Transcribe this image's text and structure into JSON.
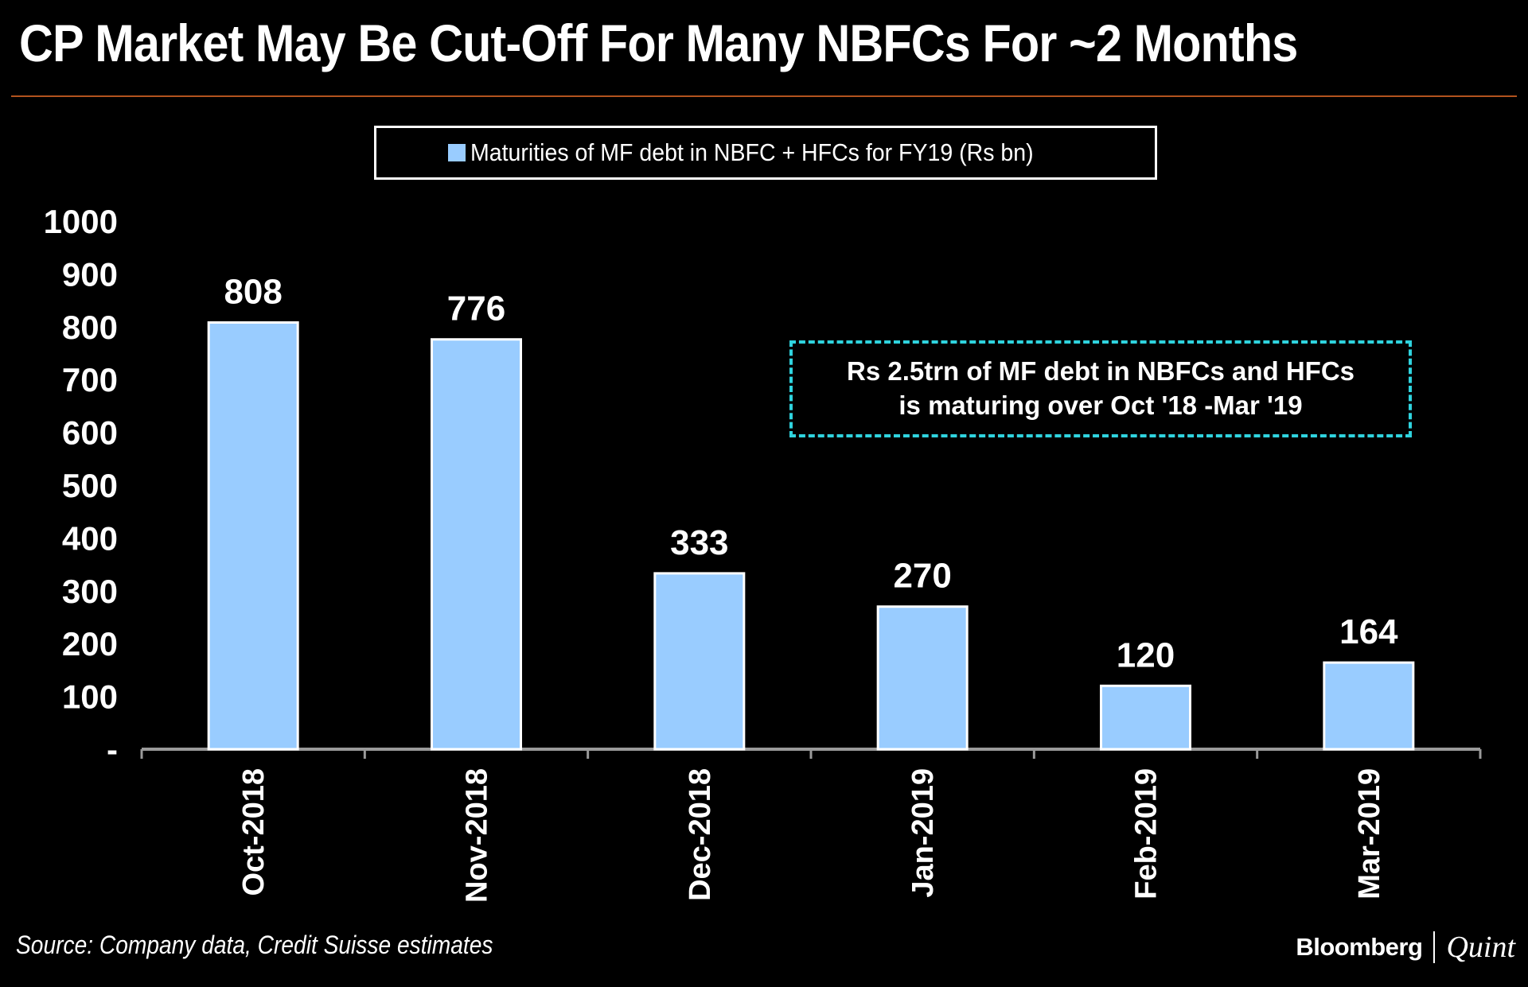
{
  "header": {
    "title": "CP Market May Be Cut-Off For Many NBFCs For ~2 Months"
  },
  "annotation": {
    "line1": "Rs 2.5trn of MF debt in NBFCs and HFCs",
    "line2": "is maturing over Oct '18 -Mar '19"
  },
  "footer": {
    "source": "Source: Company data, Credit Suisse estimates",
    "brand_left": "Bloomberg",
    "brand_right": "Quint"
  },
  "colors": {
    "bar": "#99ccff",
    "annotation_border": "#2fd3de",
    "rule": "#b2531e"
  },
  "chart_data": {
    "type": "bar",
    "title": "CP Market May Be Cut-Off For Many NBFCs For ~2 Months",
    "categories": [
      "Oct-2018",
      "Nov-2018",
      "Dec-2018",
      "Jan-2019",
      "Feb-2019",
      "Mar-2019"
    ],
    "series": [
      {
        "name": "Maturities of MF debt in NBFC + HFCs for FY19 (Rs bn)",
        "values": [
          808,
          776,
          333,
          270,
          120,
          164
        ]
      }
    ],
    "data_labels": [
      "808",
      "776",
      "333",
      "270",
      "120",
      "164"
    ],
    "y_ticks": [
      "-",
      "100",
      "200",
      "300",
      "400",
      "500",
      "600",
      "700",
      "800",
      "900",
      "1000"
    ],
    "ylim": [
      0,
      1000
    ],
    "xlabel": "",
    "ylabel": "",
    "grid": false,
    "legend_position": "top-center"
  }
}
